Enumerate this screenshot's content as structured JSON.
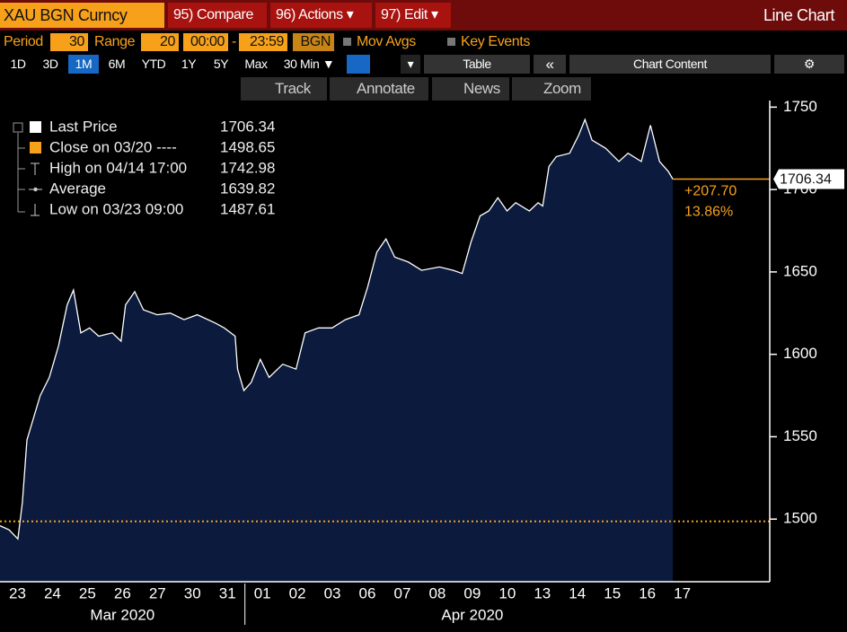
{
  "header": {
    "security": "XAU BGN Curncy",
    "buttons": [
      "95) Compare",
      "96) Actions ▾",
      "97) Edit ▾"
    ],
    "view": "Line Chart"
  },
  "settings": {
    "period_label": "Period",
    "period": "30",
    "range_label": "Range",
    "range": "20",
    "start": "00:00",
    "dash": "-",
    "end": "23:59",
    "source": "BGN",
    "mov_avgs": "Mov Avgs",
    "key_events": "Key Events"
  },
  "toolbar": {
    "ranges": [
      "1D",
      "3D",
      "1M",
      "6M",
      "YTD",
      "1Y",
      "5Y",
      "Max"
    ],
    "interval": "30 Min ▼",
    "menu": "▾",
    "table": "Table",
    "collapse": "«",
    "chart_content": "Chart Content",
    "settings_icon": "⚙"
  },
  "tools": [
    "Track",
    "Annotate",
    "News",
    "Zoom"
  ],
  "chart_data": {
    "type": "line",
    "x": [
      0,
      0.26,
      0.51,
      0.64,
      0.77,
      1.15,
      1.41,
      1.67,
      1.92,
      2.1,
      2.31,
      2.56,
      2.82,
      3.21,
      3.46,
      3.59,
      3.85,
      4.1,
      4.49,
      4.87,
      5.26,
      5.64,
      6.15,
      6.41,
      6.72,
      6.79,
      6.97,
      7.18,
      7.44,
      7.69,
      8.08,
      8.46,
      8.72,
      9.1,
      9.49,
      9.87,
      10.26,
      10.51,
      10.77,
      11.03,
      11.28,
      11.67,
      12.05,
      12.56,
      12.95,
      13.21,
      13.46,
      13.72,
      13.97,
      14.23,
      14.49,
      14.74,
      15.13,
      15.38,
      15.51,
      15.69,
      15.9,
      16.28,
      16.54,
      16.72,
      16.92,
      17.31,
      17.69,
      17.95,
      18.33,
      18.59,
      18.85,
      19.1,
      19.23
    ],
    "series": [
      {
        "name": "Last Price",
        "color": "#ffffff",
        "fill": "#0b1a3d",
        "values": [
          1496,
          1493.5,
          1488,
          1510,
          1548,
          1575,
          1586,
          1605,
          1630,
          1639,
          1613,
          1616,
          1611,
          1613,
          1608,
          1630,
          1638,
          1627,
          1624,
          1625,
          1621,
          1624,
          1619,
          1616,
          1611,
          1591,
          1578,
          1583,
          1597,
          1586,
          1594,
          1591,
          1613,
          1616,
          1616,
          1621,
          1624,
          1641,
          1662,
          1670,
          1659,
          1656,
          1651,
          1653,
          1651,
          1649,
          1668,
          1684,
          1687,
          1695,
          1687,
          1692,
          1687,
          1692,
          1690,
          1714,
          1720,
          1722,
          1733,
          1742.5,
          1730,
          1725,
          1717,
          1722,
          1717,
          1739,
          1717,
          1711,
          1706.34
        ]
      }
    ],
    "last_value": 1706.34,
    "stats": [
      {
        "label": "Close on 03/20 ----",
        "value": 1498.65,
        "color": "#f7a11a"
      },
      {
        "label": "High on 04/14 17:00",
        "value": 1742.98
      },
      {
        "label": "Average",
        "value": 1639.82
      },
      {
        "label": "Low on 03/23 09:00",
        "value": 1487.61
      }
    ],
    "change": "+207.70",
    "change_pct": "13.86%",
    "xlim": [
      0,
      22
    ],
    "ylim": [
      1462,
      1754
    ],
    "xticks": [
      {
        "value": 0.5,
        "label": "23"
      },
      {
        "value": 1.5,
        "label": "24"
      },
      {
        "value": 2.5,
        "label": "25"
      },
      {
        "value": 3.5,
        "label": "26"
      },
      {
        "value": 4.5,
        "label": "27"
      },
      {
        "value": 5.5,
        "label": "30"
      },
      {
        "value": 6.5,
        "label": "31"
      },
      {
        "value": 7.5,
        "label": "01"
      },
      {
        "value": 8.5,
        "label": "02"
      },
      {
        "value": 9.5,
        "label": "03"
      },
      {
        "value": 10.5,
        "label": "06"
      },
      {
        "value": 11.5,
        "label": "07"
      },
      {
        "value": 12.5,
        "label": "08"
      },
      {
        "value": 13.5,
        "label": "09"
      },
      {
        "value": 14.5,
        "label": "10"
      },
      {
        "value": 15.5,
        "label": "13"
      },
      {
        "value": 16.5,
        "label": "14"
      },
      {
        "value": 17.5,
        "label": "15"
      },
      {
        "value": 18.5,
        "label": "16"
      },
      {
        "value": 19.5,
        "label": "17"
      }
    ],
    "yticks": [
      1500,
      1550,
      1600,
      1650,
      1700,
      1750
    ],
    "x_groups": [
      {
        "label": "Mar 2020"
      },
      {
        "label": "Apr 2020"
      }
    ]
  }
}
